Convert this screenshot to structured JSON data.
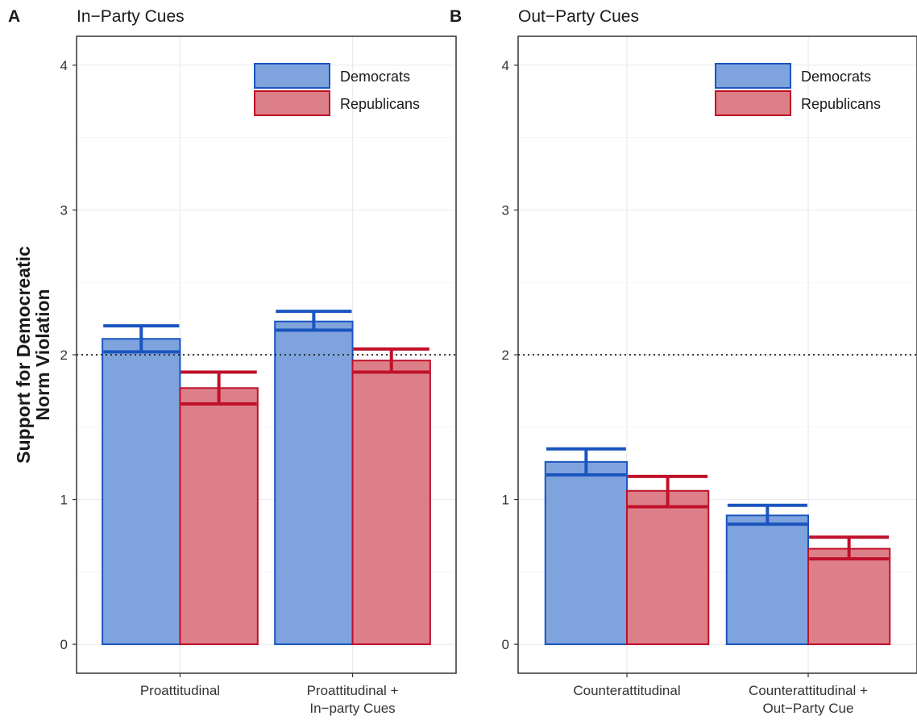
{
  "chart_data": {
    "ylabel_lines": [
      "Support for Democreatic",
      "Norm Violation"
    ],
    "colors": {
      "democrats_fill": "#7fa3dc",
      "democrats_stroke": "#1a55c0",
      "republicans_fill": "#dc7f89",
      "republicans_stroke": "#c0102a"
    },
    "panels": [
      {
        "letter": "A",
        "title": "In−Party Cues",
        "type": "bar",
        "ylim": [
          -0.2,
          4.2
        ],
        "yticks": [
          "0",
          "1",
          "2",
          "3",
          "4"
        ],
        "reference_line": 2,
        "legend": {
          "position": "top-right",
          "entries": [
            "Democrats",
            "Republicans"
          ]
        },
        "categories": [
          {
            "lines": [
              "Proattitudinal"
            ]
          },
          {
            "lines": [
              "Proattitudinal +",
              "In−party Cues"
            ]
          }
        ],
        "series": [
          {
            "name": "Democrats",
            "values": [
              2.11,
              2.23
            ],
            "ci_low": [
              2.02,
              2.17
            ],
            "ci_high": [
              2.2,
              2.3
            ]
          },
          {
            "name": "Republicans",
            "values": [
              1.77,
              1.96
            ],
            "ci_low": [
              1.66,
              1.88
            ],
            "ci_high": [
              1.88,
              2.04
            ]
          }
        ]
      },
      {
        "letter": "B",
        "title": "Out−Party Cues",
        "type": "bar",
        "ylim": [
          -0.2,
          4.2
        ],
        "yticks": [
          "0",
          "1",
          "2",
          "3",
          "4"
        ],
        "reference_line": 2,
        "legend": {
          "position": "top-right",
          "entries": [
            "Democrats",
            "Republicans"
          ]
        },
        "categories": [
          {
            "lines": [
              "Counterattitudinal"
            ]
          },
          {
            "lines": [
              "Counterattitudinal +",
              "Out−Party Cue"
            ]
          }
        ],
        "series": [
          {
            "name": "Democrats",
            "values": [
              1.26,
              0.89
            ],
            "ci_low": [
              1.17,
              0.83
            ],
            "ci_high": [
              1.35,
              0.96
            ]
          },
          {
            "name": "Republicans",
            "values": [
              1.06,
              0.66
            ],
            "ci_low": [
              0.95,
              0.59
            ],
            "ci_high": [
              1.16,
              0.74
            ]
          }
        ]
      }
    ]
  }
}
